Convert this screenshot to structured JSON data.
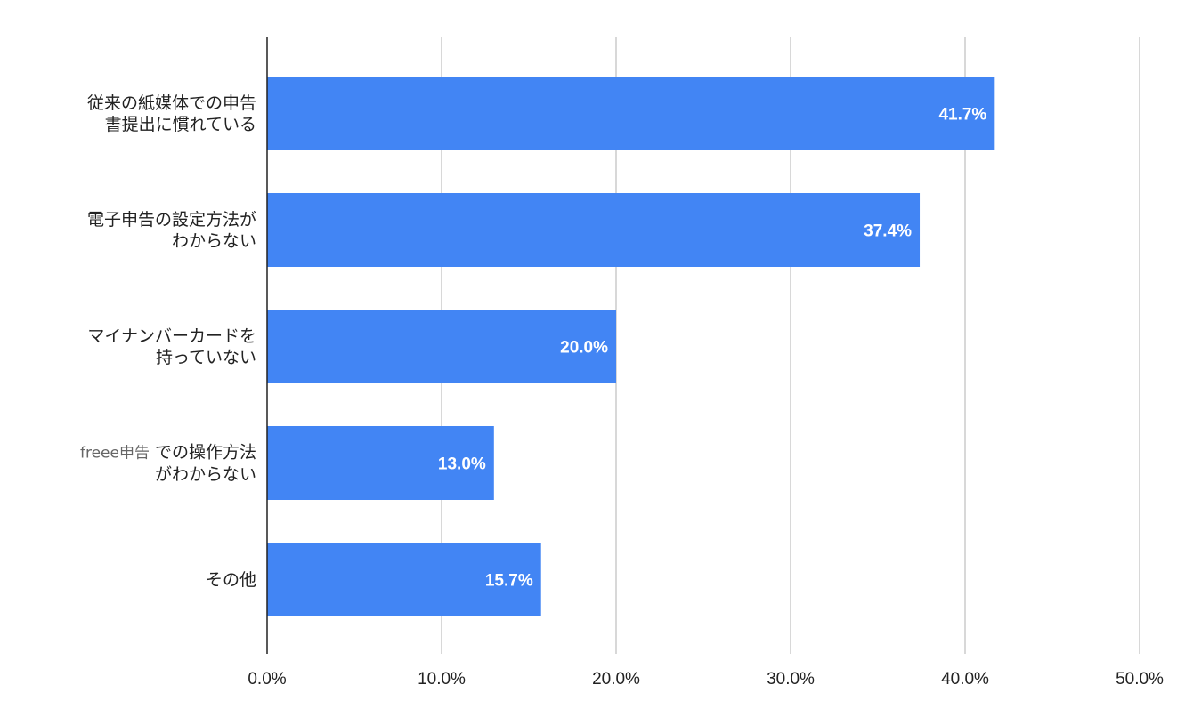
{
  "chart_data": {
    "type": "bar",
    "orientation": "horizontal",
    "categories": [
      [
        "従来の紙媒体での申告",
        "書提出に慣れている"
      ],
      [
        "電子申告の設定方法が",
        "わからない"
      ],
      [
        "マイナンバーカードを",
        "持っていない"
      ],
      [
        "freee申告での操作方法",
        "がわからない"
      ],
      [
        "その他"
      ]
    ],
    "values": [
      41.7,
      37.4,
      20.0,
      13.0,
      15.7
    ],
    "data_labels": [
      "41.7%",
      "37.4%",
      "20.0%",
      "13.0%",
      "15.7%"
    ],
    "xlim": [
      0,
      50
    ],
    "x_ticks": [
      "0.0%",
      "10.0%",
      "20.0%",
      "30.0%",
      "40.0%",
      "50.0%"
    ],
    "grid": true,
    "bar_color": "#4285f4",
    "title": "",
    "xlabel": "",
    "ylabel": ""
  }
}
